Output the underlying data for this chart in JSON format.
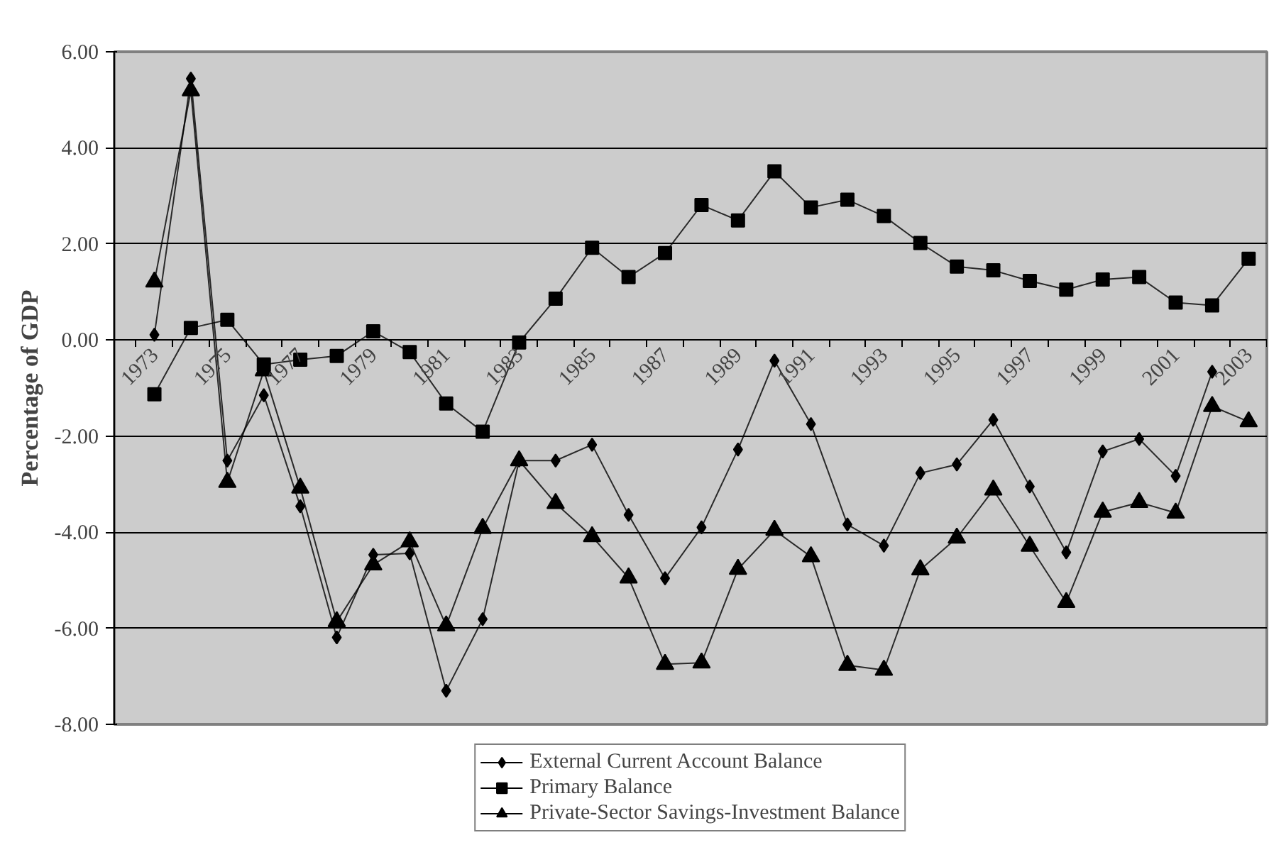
{
  "chart_data": {
    "type": "line",
    "ylabel": "Percentage of GDP",
    "categories": [
      "1973",
      null,
      "1975",
      null,
      "1977",
      null,
      "1979",
      null,
      "1981",
      null,
      "1983",
      null,
      "1985",
      null,
      "1987",
      null,
      "1989",
      null,
      "1991",
      null,
      "1993",
      null,
      "1995",
      null,
      "1997",
      null,
      "1999",
      null,
      "2001",
      null,
      "2003"
    ],
    "series": [
      {
        "name": "External Current Account Balance",
        "color": "#000000",
        "marker": "diamond",
        "values": [
          0.11,
          5.44,
          -2.51,
          -1.15,
          -3.46,
          -6.19,
          -4.47,
          -4.44,
          -7.3,
          -5.81,
          -2.51,
          -2.51,
          -2.18,
          -3.64,
          -4.96,
          -3.9,
          -2.28,
          -0.43,
          -1.75,
          -3.84,
          -4.28,
          -2.77,
          -2.59,
          -1.66,
          -3.05,
          -4.42,
          -2.32,
          -2.06,
          -2.83,
          -0.66,
          null
        ]
      },
      {
        "name": "Primary Balance",
        "color": "#000000",
        "marker": "square",
        "values": [
          -1.13,
          0.25,
          0.42,
          -0.51,
          -0.41,
          -0.33,
          0.18,
          -0.25,
          -1.32,
          -1.91,
          -0.05,
          0.86,
          1.92,
          1.31,
          1.81,
          2.81,
          2.49,
          3.51,
          2.76,
          2.92,
          2.58,
          2.02,
          1.53,
          1.45,
          1.23,
          1.05,
          1.26,
          1.31,
          0.78,
          0.72,
          1.69
        ]
      },
      {
        "name": "Private-Sector Savings-Investment Balance",
        "color": "#000000",
        "marker": "triangle",
        "values": [
          1.21,
          5.19,
          -2.96,
          -0.64,
          -3.08,
          -5.86,
          -4.68,
          -4.2,
          -5.95,
          -3.92,
          -2.51,
          -3.4,
          -4.09,
          -4.95,
          -6.75,
          -6.72,
          -4.77,
          -3.96,
          -4.51,
          -6.77,
          -6.87,
          -4.78,
          -4.12,
          -3.12,
          -4.29,
          -5.46,
          -3.58,
          -3.38,
          -3.6,
          -1.38,
          -1.7
        ]
      }
    ],
    "ylim": [
      -8,
      6
    ],
    "yticks": [
      {
        "value": -8,
        "label": "-8.00"
      },
      {
        "value": -6,
        "label": "-6.00"
      },
      {
        "value": -4,
        "label": "-4.00"
      },
      {
        "value": -2,
        "label": "-2.00"
      },
      {
        "value": 0,
        "label": "0.00"
      },
      {
        "value": 2,
        "label": "2.00"
      },
      {
        "value": 4,
        "label": "4.00"
      },
      {
        "value": 6,
        "label": "6.00"
      }
    ],
    "grid": "y",
    "legend": "bottom",
    "line_style": "solid"
  }
}
